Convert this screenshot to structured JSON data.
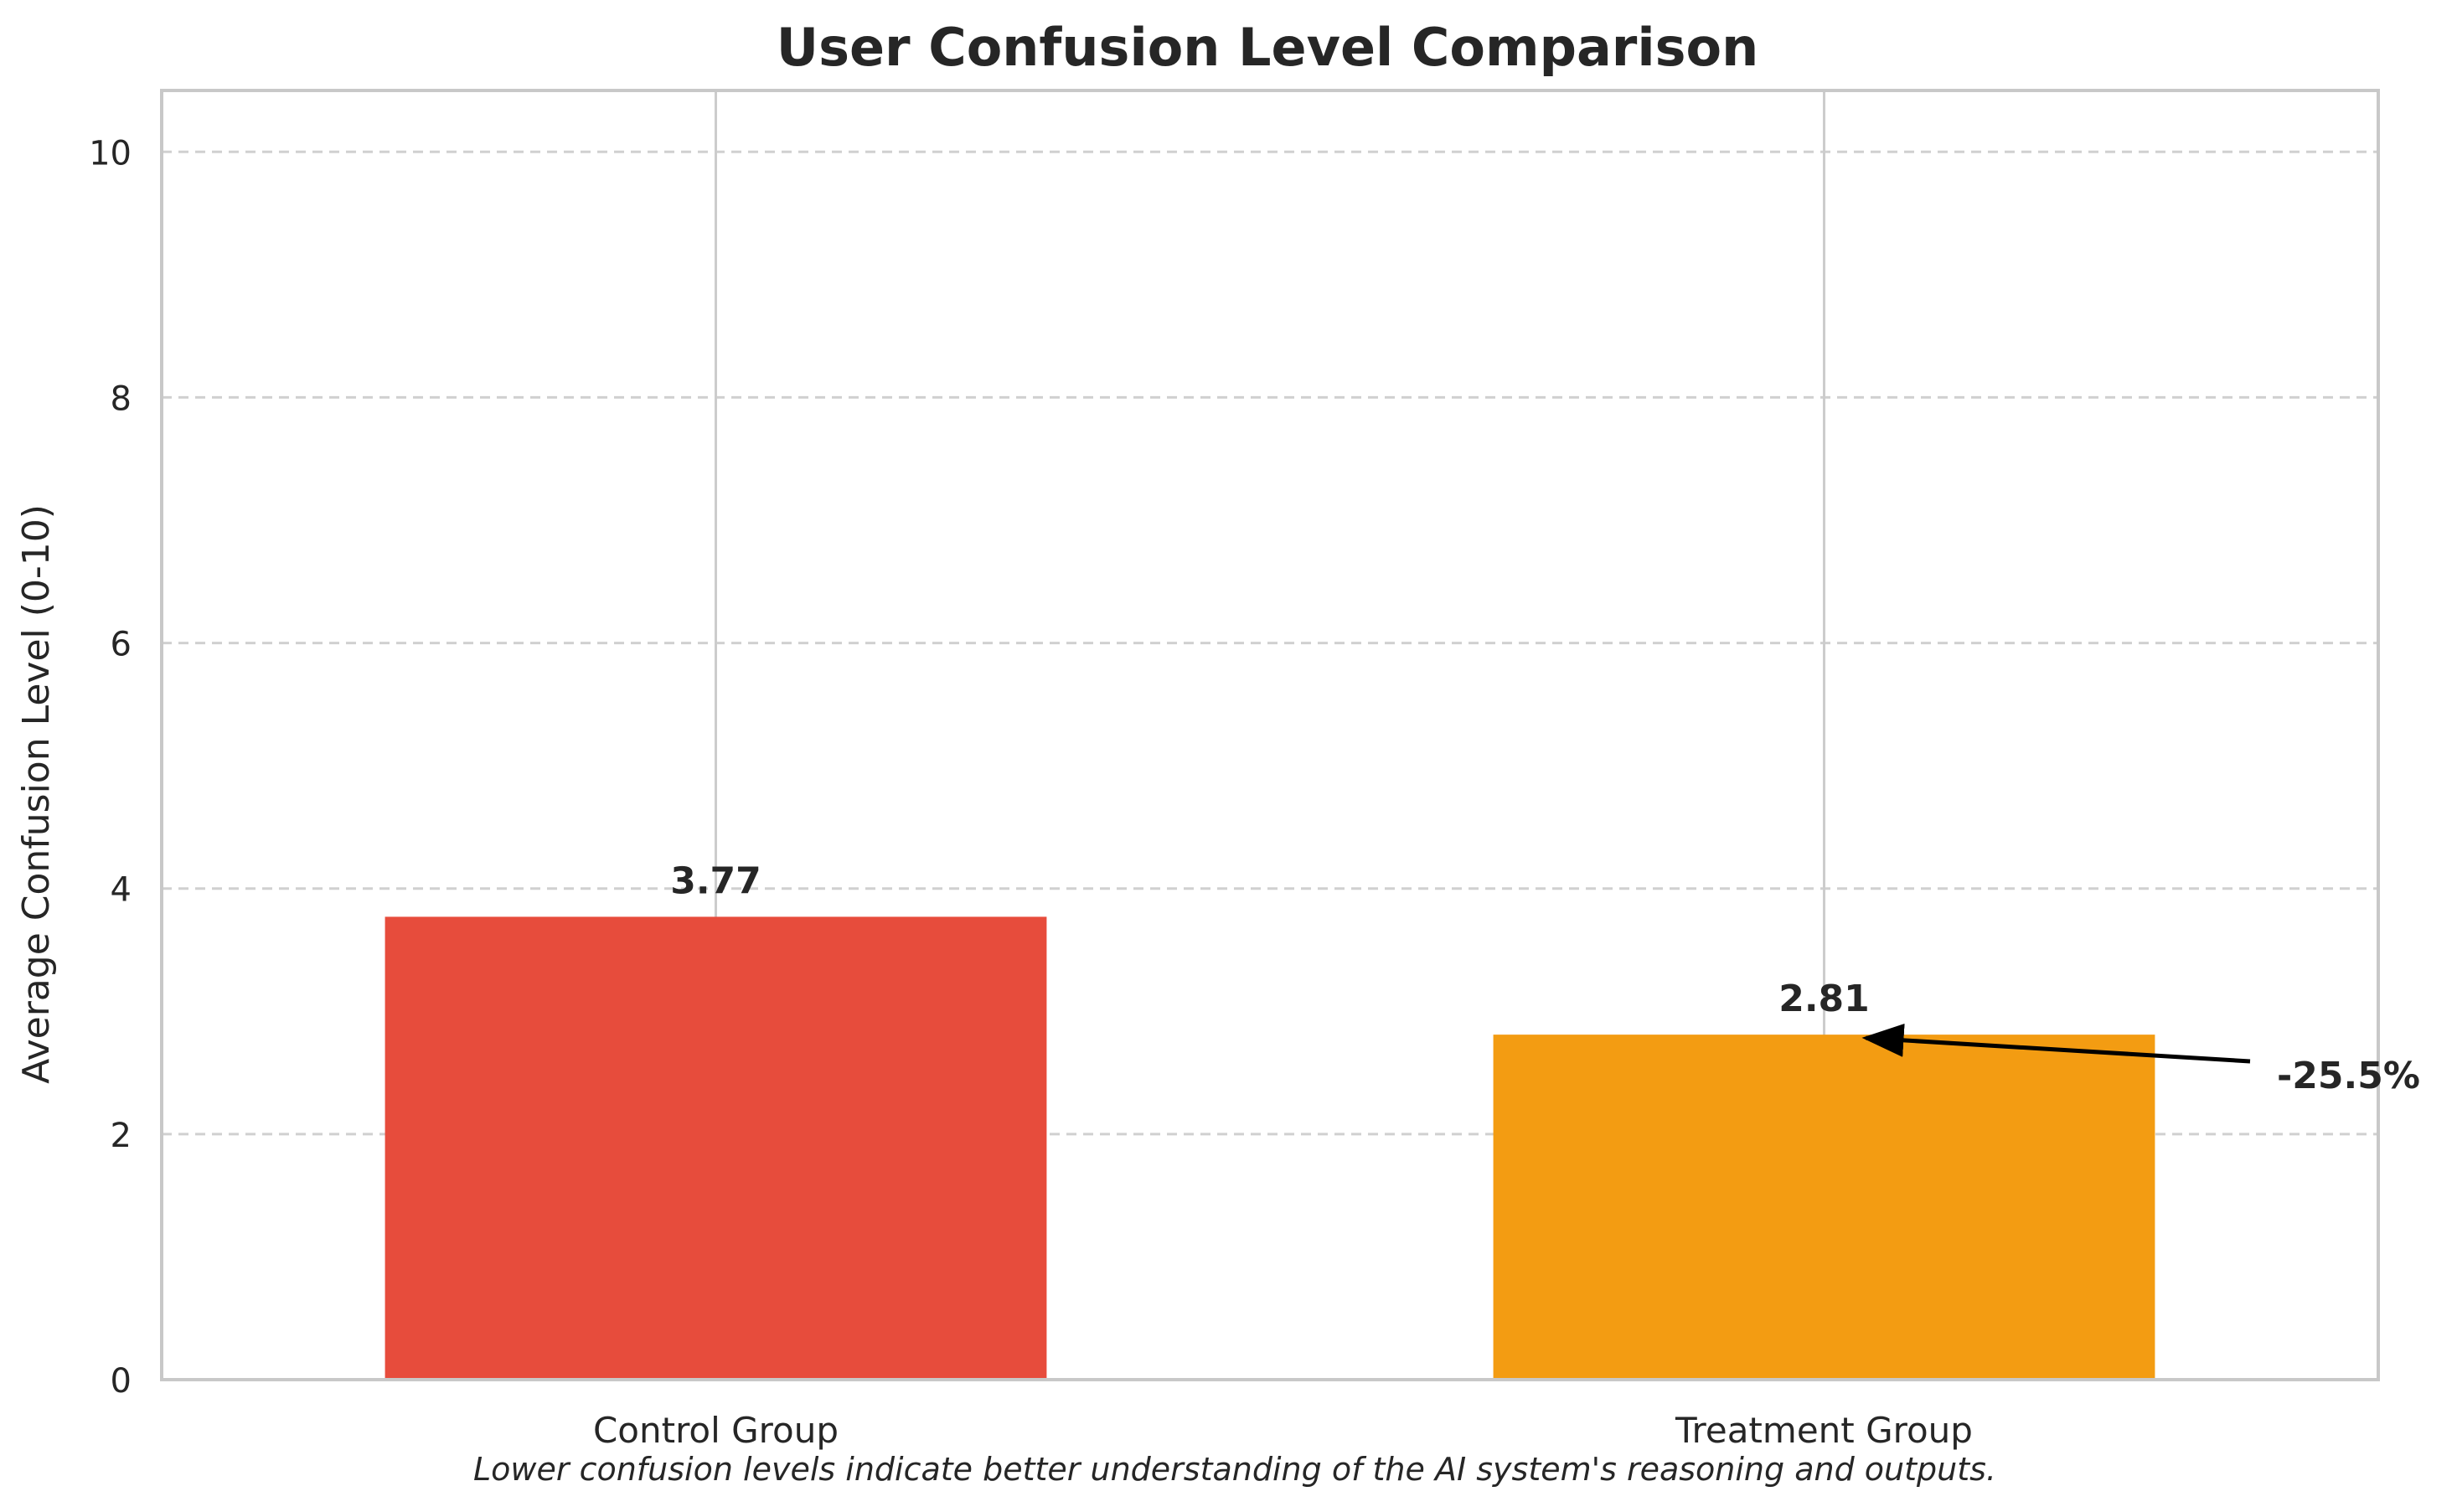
{
  "chart_data": {
    "type": "bar",
    "title": "User Confusion Level Comparison",
    "xlabel": "",
    "ylabel": "Average Confusion Level (0-10)",
    "categories": [
      "Control Group",
      "Treatment Group"
    ],
    "values": [
      3.77,
      2.81
    ],
    "value_labels": [
      "3.77",
      "2.81"
    ],
    "bar_colors": [
      "#e74c3c",
      "#f39c12"
    ],
    "ylim": [
      0,
      10.5
    ],
    "yticks": [
      0,
      2,
      4,
      6,
      8,
      10
    ],
    "ytick_labels": [
      "0",
      "2",
      "4",
      "6",
      "8",
      "10"
    ],
    "grid": "horizontal dashed and vertical solid",
    "annotation": {
      "text": "-25.5%",
      "points_to": "Treatment Group",
      "arrow_head_color": "#000000"
    },
    "footnote": "Lower confusion levels indicate better understanding of the AI system's reasoning and outputs."
  }
}
